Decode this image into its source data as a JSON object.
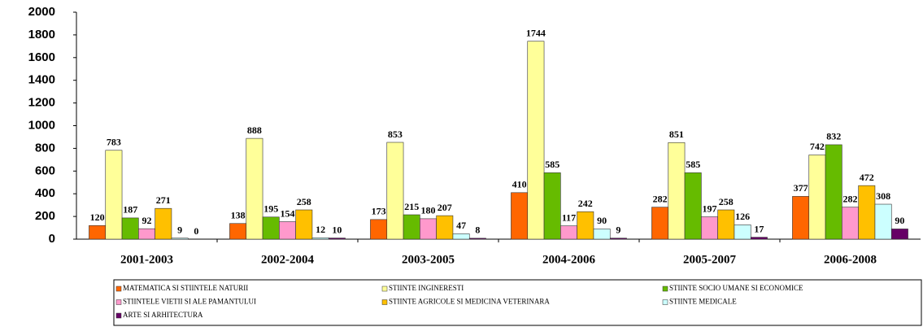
{
  "chart_data": {
    "type": "bar",
    "categories": [
      "2001-2003",
      "2002-2004",
      "2003-2005",
      "2004-2006",
      "2005-2007",
      "2006-2008"
    ],
    "series": [
      {
        "name": "MATEMATICA SI STIINTELE NATURII",
        "color": "#ff6600",
        "values": [
          120,
          138,
          173,
          410,
          282,
          377
        ]
      },
      {
        "name": "STIINTE INGINERESTI",
        "color": "#ffff99",
        "values": [
          783,
          888,
          853,
          1744,
          851,
          742
        ]
      },
      {
        "name": "STIINTE SOCIO UMANE SI ECONOMICE",
        "color": "#66bb00",
        "values": [
          187,
          195,
          215,
          585,
          585,
          832
        ]
      },
      {
        "name": "STIINTELE VIETII SI ALE PAMANTULUI",
        "color": "#ff99cc",
        "values": [
          92,
          154,
          180,
          117,
          197,
          282
        ]
      },
      {
        "name": "STIINTE AGRICOLE SI MEDICINA VETERINARA",
        "color": "#ffc000",
        "values": [
          271,
          258,
          207,
          242,
          258,
          472
        ]
      },
      {
        "name": "STIINTE MEDICALE",
        "color": "#ccffff",
        "values": [
          9,
          12,
          47,
          90,
          126,
          308
        ]
      },
      {
        "name": "ARTE SI ARHITECTURA",
        "color": "#660066",
        "values": [
          0,
          10,
          8,
          9,
          17,
          90
        ]
      }
    ],
    "ylim": [
      0,
      2000
    ],
    "yticks": [
      0,
      200,
      400,
      600,
      800,
      1000,
      1200,
      1400,
      1600,
      1800,
      2000
    ],
    "grid": false,
    "legend": "bottom"
  }
}
